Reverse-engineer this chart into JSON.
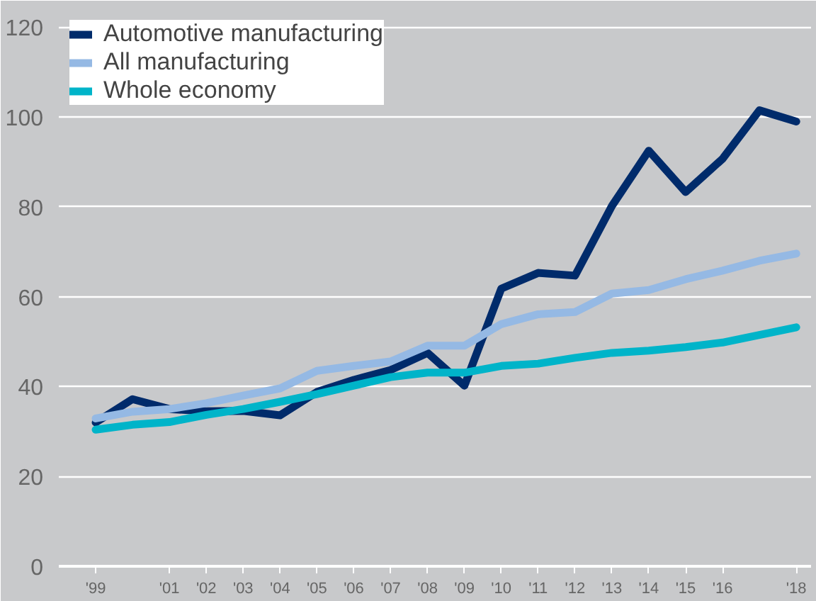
{
  "chart_data": {
    "type": "line",
    "x": [
      1999,
      2000,
      2001,
      2002,
      2003,
      2004,
      2005,
      2006,
      2007,
      2008,
      2009,
      2010,
      2011,
      2012,
      2013,
      2014,
      2015,
      2016,
      2017,
      2018
    ],
    "series": [
      {
        "name": "Automotive manufacturing",
        "color": "#002b6b",
        "values": [
          32,
          37.2,
          35,
          34.5,
          34.6,
          33.6,
          38.8,
          41.5,
          43.7,
          47.5,
          40.2,
          61.8,
          65.3,
          64.7,
          80.2,
          92.5,
          83.3,
          90.7,
          101.5,
          99
        ]
      },
      {
        "name": "All manufacturing",
        "color": "#95b9e4",
        "values": [
          32.9,
          34.4,
          35,
          36.3,
          38,
          39.6,
          43.5,
          44.6,
          45.6,
          49.1,
          49.1,
          53.9,
          56.1,
          56.6,
          60.7,
          61.5,
          63.9,
          65.8,
          68,
          69.6
        ]
      },
      {
        "name": "Whole economy",
        "color": "#00b4c9",
        "values": [
          30.4,
          31.5,
          32.1,
          33.7,
          35,
          36.6,
          38.3,
          40.2,
          42.1,
          43.1,
          43.1,
          44.6,
          45.1,
          46.4,
          47.5,
          48,
          48.8,
          49.8,
          51.5,
          53.2
        ]
      }
    ],
    "xlim": [
      1998,
      2018.4
    ],
    "xticks": [
      {
        "value": 1999,
        "label": "'99"
      },
      {
        "value": 2001,
        "label": "'01"
      },
      {
        "value": 2002,
        "label": "'02"
      },
      {
        "value": 2003,
        "label": "'03"
      },
      {
        "value": 2004,
        "label": "'04"
      },
      {
        "value": 2005,
        "label": "'05"
      },
      {
        "value": 2006,
        "label": "'06"
      },
      {
        "value": 2007,
        "label": "'07"
      },
      {
        "value": 2008,
        "label": "'08"
      },
      {
        "value": 2009,
        "label": "'09"
      },
      {
        "value": 2010,
        "label": "'10"
      },
      {
        "value": 2011,
        "label": "'11"
      },
      {
        "value": 2012,
        "label": "'12"
      },
      {
        "value": 2013,
        "label": "'13"
      },
      {
        "value": 2014,
        "label": "'14"
      },
      {
        "value": 2015,
        "label": "'15"
      },
      {
        "value": 2016,
        "label": "'16"
      },
      {
        "value": 2018,
        "label": "'18"
      }
    ],
    "ylim": [
      0,
      124
    ],
    "yticks": [
      0,
      20,
      40,
      60,
      80,
      100,
      120
    ],
    "grid": "y",
    "legend": "top left",
    "marker": "none",
    "line_style": "solid"
  }
}
